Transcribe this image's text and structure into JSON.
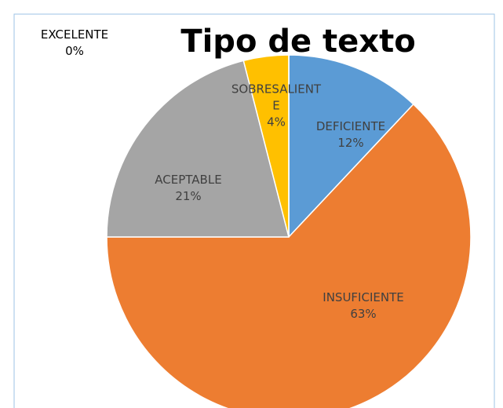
{
  "chart_data": {
    "type": "pie",
    "title": "Tipo de texto",
    "categories": [
      "DEFICIENTE",
      "INSUFICIENTE",
      "ACEPTABLE",
      "SOBRESALIENTE",
      "EXCELENTE"
    ],
    "values": [
      12,
      63,
      21,
      4,
      0
    ],
    "value_labels": [
      "12%",
      "63%",
      "21%",
      "4%",
      "0%"
    ],
    "colors": [
      "#5b9bd5",
      "#ed7d31",
      "#a5a5a5",
      "#ffc000",
      "#4472c4"
    ]
  }
}
